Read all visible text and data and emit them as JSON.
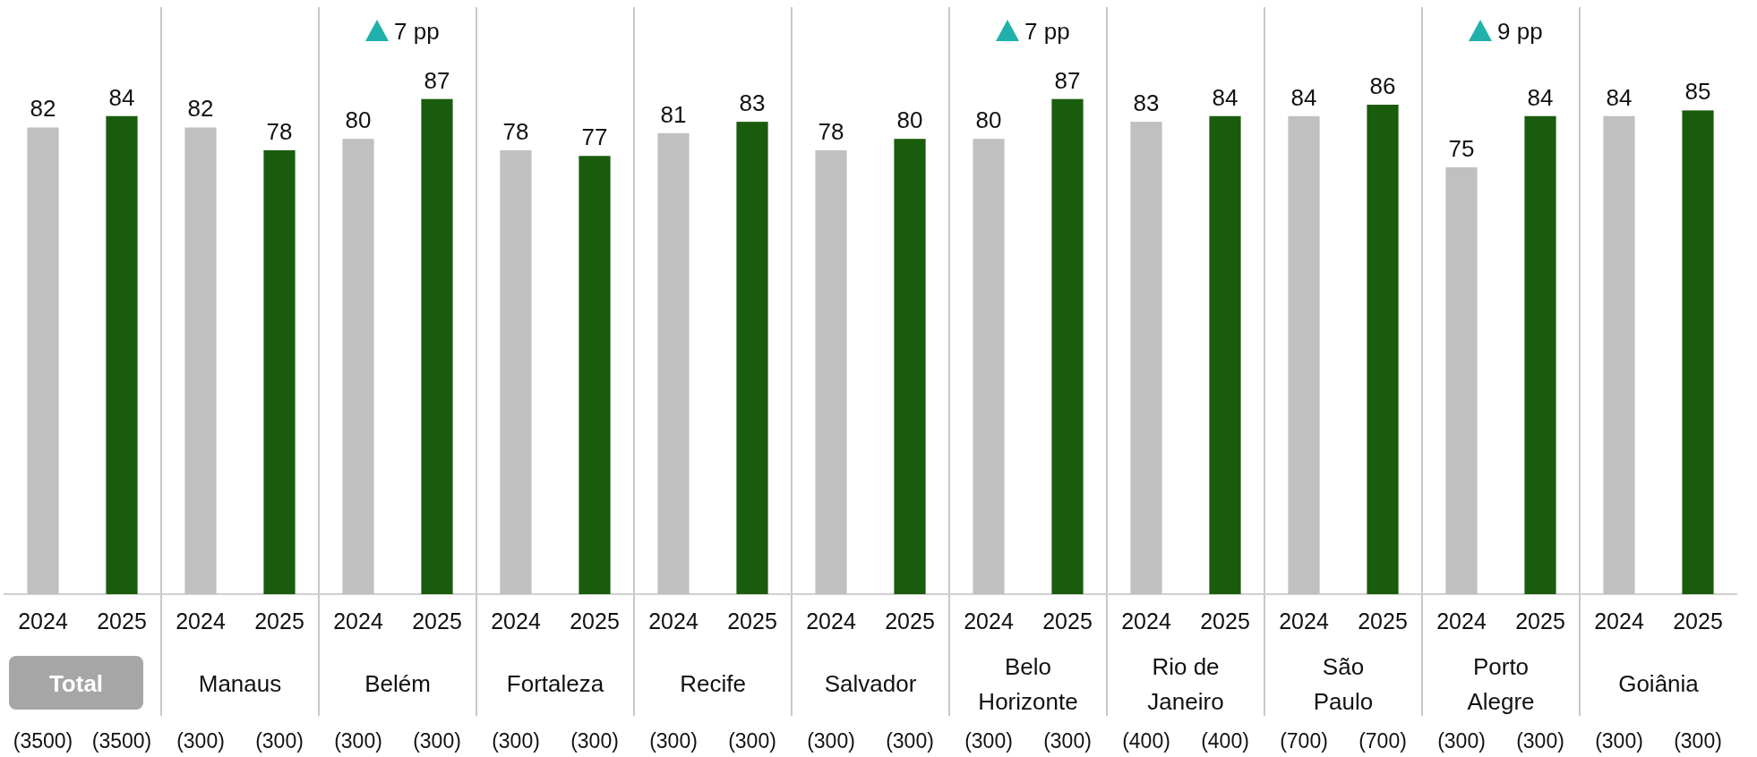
{
  "chart_data": {
    "type": "bar",
    "categories": [
      "Total",
      "Manaus",
      "Belém",
      "Fortaleza",
      "Recife",
      "Salvador",
      "Belo Horizonte",
      "Rio de Janeiro",
      "São Paulo",
      "Porto Alegre",
      "Goiânia"
    ],
    "series": [
      {
        "name": "2024",
        "color": "#c0c0c0",
        "values": [
          82,
          82,
          80,
          78,
          81,
          78,
          80,
          83,
          84,
          75,
          84
        ]
      },
      {
        "name": "2025",
        "color": "#1a5c0d",
        "values": [
          84,
          78,
          87,
          77,
          83,
          80,
          87,
          84,
          86,
          84,
          85
        ]
      }
    ],
    "data_labels": true,
    "legend": false,
    "grid": false,
    "annotations": [
      "7 pp",
      "7 pp",
      "9 pp",
      "(3500)",
      "(3500)",
      "(300)",
      "(300)",
      "(300)",
      "(300)",
      "(300)",
      "(300)",
      "(300)",
      "(300)",
      "(300)",
      "(300)",
      "(300)",
      "(300)",
      "(400)",
      "(400)",
      "(700)",
      "(700)",
      "(300)",
      "(300)",
      "(300)",
      "(300)"
    ]
  }
}
